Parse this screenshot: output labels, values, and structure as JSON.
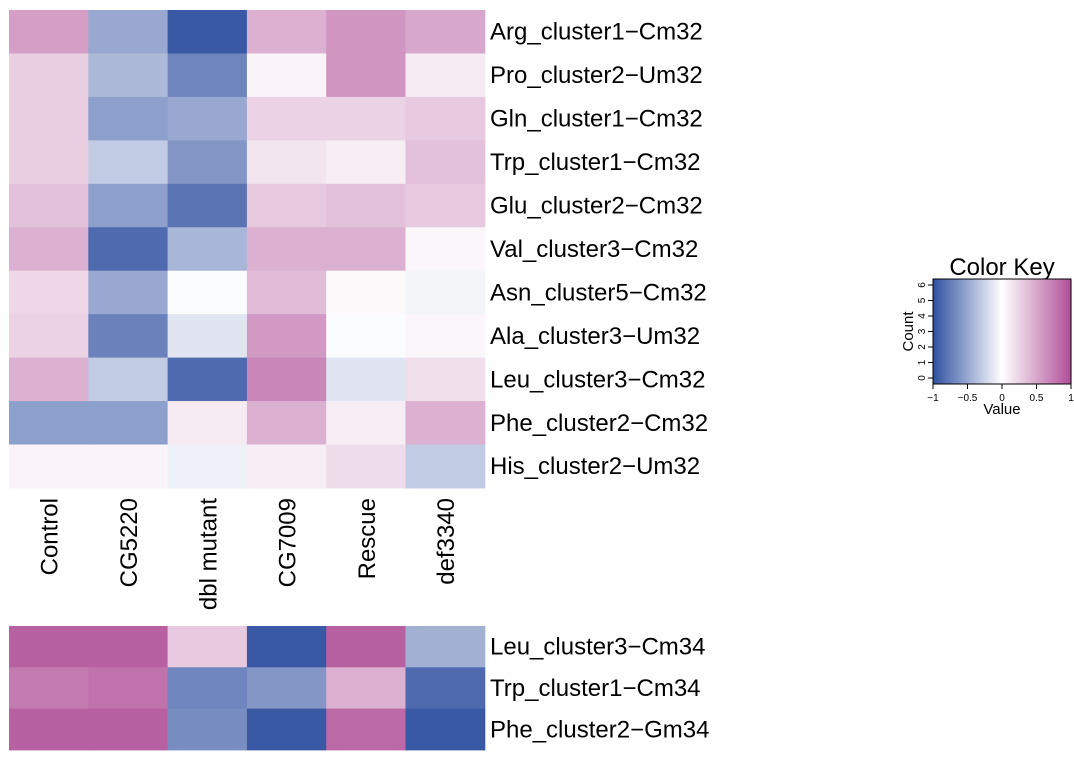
{
  "colors": {
    "low": "#3050a0",
    "mid": "#ffffff",
    "high": "#b04f98"
  },
  "chart_data": [
    {
      "type": "heatmap",
      "columns": [
        "Control",
        "CG5220",
        "dbl mutant",
        "CG7009",
        "Rescue",
        "def3340"
      ],
      "rows": [
        "Arg_cluster1−Cm32",
        "Pro_cluster2−Um32",
        "Gln_cluster1−Cm32",
        "Trp_cluster1−Cm32",
        "Glu_cluster2−Cm32",
        "Val_cluster3−Cm32",
        "Asn_cluster5−Cm32",
        "Ala_cluster3−Um32",
        "Leu_cluster3−Cm32",
        "Phe_cluster2−Cm32",
        "His_cluster2−Um32"
      ],
      "values": [
        [
          0.55,
          -0.5,
          -0.95,
          0.45,
          0.6,
          0.5
        ],
        [
          0.28,
          -0.4,
          -0.7,
          0.06,
          0.6,
          0.12
        ],
        [
          0.28,
          -0.55,
          -0.5,
          0.25,
          0.25,
          0.3
        ],
        [
          0.28,
          -0.3,
          -0.6,
          0.15,
          0.1,
          0.35
        ],
        [
          0.35,
          -0.55,
          -0.8,
          0.3,
          0.35,
          0.3
        ],
        [
          0.45,
          -0.85,
          -0.42,
          0.45,
          0.45,
          0.05
        ],
        [
          0.22,
          -0.5,
          -0.02,
          0.38,
          0.03,
          -0.06
        ],
        [
          0.25,
          -0.72,
          -0.15,
          0.58,
          -0.02,
          0.05
        ],
        [
          0.45,
          -0.3,
          -0.85,
          0.68,
          -0.15,
          0.18
        ],
        [
          -0.55,
          -0.55,
          0.12,
          0.45,
          0.1,
          0.45
        ],
        [
          0.06,
          0.06,
          -0.08,
          0.1,
          0.2,
          -0.3
        ]
      ]
    },
    {
      "type": "heatmap",
      "columns": [
        "Control",
        "CG5220",
        "dbl mutant",
        "CG7009",
        "Rescue",
        "def3340"
      ],
      "rows": [
        "Leu_cluster3−Cm34",
        "Trp_cluster1−Cm34",
        "Phe_cluster2−Gm34"
      ],
      "values": [
        [
          0.9,
          0.9,
          0.3,
          -0.95,
          0.9,
          -0.45
        ],
        [
          0.75,
          0.8,
          -0.7,
          -0.6,
          0.45,
          -0.85
        ],
        [
          0.9,
          0.9,
          -0.65,
          -0.95,
          0.85,
          -0.95
        ]
      ]
    },
    {
      "type": "area",
      "title": "Color Key",
      "xlabel": "Value",
      "ylabel": "Count",
      "x_ticks": [
        "−1",
        "−0.5",
        "0",
        "0.5",
        "1"
      ],
      "y_ticks": [
        "0",
        "1",
        "2",
        "3",
        "4",
        "5",
        "6"
      ],
      "xlim": [
        -1,
        1
      ],
      "ylim": [
        0,
        6
      ]
    }
  ]
}
